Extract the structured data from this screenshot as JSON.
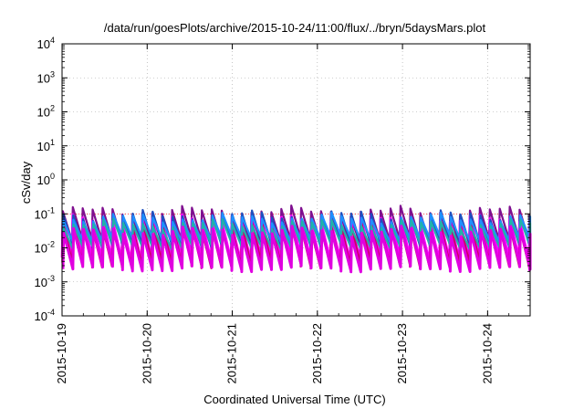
{
  "chart_data": {
    "type": "line",
    "title": "/data/run/goesPlots/archive/2015-10-24/11:00/flux/../bryn/5daysMars.plot",
    "xlabel": "Coordinated Universal Time (UTC)",
    "ylabel": "cSv/day",
    "x_range": [
      "2015-10-19T00:00",
      "2015-10-24T12:00"
    ],
    "x_ticks": [
      "2015-10-19",
      "2015-10-20",
      "2015-10-21",
      "2015-10-22",
      "2015-10-23",
      "2015-10-24"
    ],
    "y_scale": "log",
    "ylim": [
      0.0001,
      10000
    ],
    "y_ticks": [
      {
        "base": "10",
        "exp": "-4",
        "value": 0.0001
      },
      {
        "base": "10",
        "exp": "-3",
        "value": 0.001
      },
      {
        "base": "10",
        "exp": "-2",
        "value": 0.01
      },
      {
        "base": "10",
        "exp": "-1",
        "value": 0.1
      },
      {
        "base": "10",
        "exp": "0",
        "value": 1
      },
      {
        "base": "10",
        "exp": "1",
        "value": 10
      },
      {
        "base": "10",
        "exp": "2",
        "value": 100
      },
      {
        "base": "10",
        "exp": "3",
        "value": 1000
      },
      {
        "base": "10",
        "exp": "4",
        "value": 10000
      }
    ],
    "grid": true,
    "reference_line": {
      "value": 0.1,
      "color": "#ff0000",
      "style": "dotted"
    },
    "sawtooth_period_hours": 2.8,
    "series": [
      {
        "color": "#7f0f8f",
        "peak": 0.12,
        "trough": 0.016
      },
      {
        "color": "#ff00ff",
        "peak": 0.065,
        "trough": 0.0045
      },
      {
        "color": "#cc0066",
        "peak": 0.045,
        "trough": 0.0032
      },
      {
        "color": "#1f4fbf",
        "peak": 0.09,
        "trough": 0.013
      },
      {
        "color": "#1e90ff",
        "peak": 0.075,
        "trough": 0.018
      },
      {
        "color": "#20b2aa",
        "peak": 0.05,
        "trough": 0.011
      },
      {
        "color": "#e000e0",
        "peak": 0.03,
        "trough": 0.0025
      }
    ]
  }
}
